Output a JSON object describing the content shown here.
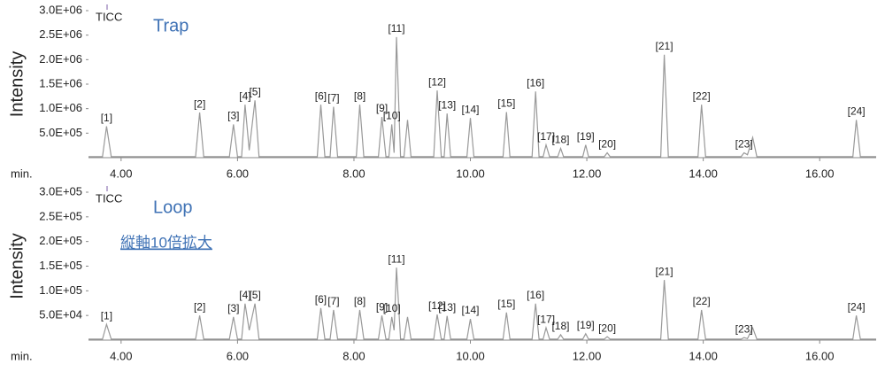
{
  "chart_data": [
    {
      "type": "line",
      "annotations": [
        "Trap"
      ],
      "y_label": "Intensity",
      "x_label": "min.",
      "xlim": [
        3.44,
        16.97
      ],
      "ylim": [
        0,
        3000000
      ],
      "xticks": [
        {
          "value": 4,
          "label": "4.00"
        },
        {
          "value": 6,
          "label": "6.00"
        },
        {
          "value": 8,
          "label": "8.00"
        },
        {
          "value": 10,
          "label": "10.00"
        },
        {
          "value": 12,
          "label": "12.00"
        },
        {
          "value": 14,
          "label": "14.00"
        },
        {
          "value": 16,
          "label": "16.00"
        }
      ],
      "yticks": [
        {
          "value": 500000,
          "label": "5.0E+05"
        },
        {
          "value": 1000000,
          "label": "1.0E+06"
        },
        {
          "value": 1500000,
          "label": "1.5E+06"
        },
        {
          "value": 2000000,
          "label": "2.0E+06"
        },
        {
          "value": 2500000,
          "label": "2.5E+06"
        },
        {
          "value": 3000000,
          "label": "3.0E+06"
        }
      ],
      "x": [
        3.44,
        3.68,
        3.75,
        3.83,
        5.28,
        5.35,
        5.42,
        5.86,
        5.93,
        6.0,
        6.07,
        6.13,
        6.2,
        6.3,
        6.37,
        7.37,
        7.43,
        7.5,
        7.59,
        7.65,
        7.72,
        8.04,
        8.1,
        8.17,
        8.42,
        8.48,
        8.55,
        8.6,
        8.65,
        8.69,
        8.73,
        8.8,
        8.86,
        8.92,
        8.98,
        9.37,
        9.43,
        9.5,
        9.55,
        9.6,
        9.66,
        9.94,
        10.0,
        10.06,
        10.56,
        10.62,
        10.68,
        11.06,
        11.12,
        11.18,
        11.25,
        11.3,
        11.36,
        11.5,
        11.55,
        11.6,
        11.93,
        11.98,
        12.03,
        12.3,
        12.35,
        12.4,
        13.27,
        13.33,
        13.4,
        13.91,
        13.97,
        14.04,
        14.65,
        14.7,
        14.76,
        14.85,
        14.92,
        16.57,
        16.63,
        16.7,
        16.97
      ],
      "series": [
        {
          "name": "TICC",
          "color": "#999999",
          "marker_color": "#7b5ea7",
          "values": [
            20000,
            20000,
            640000,
            20000,
            20000,
            920000,
            20000,
            20000,
            680000,
            20000,
            20000,
            1080000,
            150000,
            1170000,
            20000,
            20000,
            1080000,
            20000,
            20000,
            1040000,
            20000,
            20000,
            1080000,
            20000,
            20000,
            830000,
            20000,
            20000,
            680000,
            100000,
            2460000,
            20000,
            20000,
            770000,
            20000,
            20000,
            1370000,
            20000,
            20000,
            900000,
            20000,
            20000,
            810000,
            20000,
            20000,
            930000,
            20000,
            20000,
            1350000,
            20000,
            20000,
            260000,
            20000,
            20000,
            190000,
            20000,
            20000,
            260000,
            20000,
            20000,
            100000,
            20000,
            20000,
            2100000,
            20000,
            20000,
            1080000,
            20000,
            20000,
            100000,
            60000,
            410000,
            20000,
            20000,
            770000,
            20000,
            20000
          ],
          "point_labels": [
            null,
            null,
            "[1]",
            null,
            null,
            "[2]",
            null,
            null,
            "[3]",
            null,
            null,
            "[4]",
            null,
            "[5]",
            null,
            null,
            "[6]",
            null,
            null,
            "[7]",
            null,
            null,
            "[8]",
            null,
            null,
            "[9]",
            null,
            null,
            "[10]",
            null,
            "[11]",
            null,
            null,
            null,
            null,
            null,
            "[12]",
            null,
            null,
            "[13]",
            null,
            null,
            "[14]",
            null,
            null,
            "[15]",
            null,
            null,
            "[16]",
            null,
            null,
            "[17]",
            null,
            null,
            "[18]",
            null,
            null,
            "[19]",
            null,
            null,
            "[20]",
            null,
            null,
            "[21]",
            null,
            null,
            "[22]",
            null,
            null,
            "[23]",
            null,
            null,
            null,
            null,
            "[24]",
            null,
            null
          ]
        }
      ]
    },
    {
      "type": "line",
      "annotations": [
        "Loop",
        "縦軸10倍拡大"
      ],
      "y_label": "Intensity",
      "x_label": "min.",
      "xlim": [
        3.44,
        16.97
      ],
      "ylim": [
        0,
        300000
      ],
      "xticks": [
        {
          "value": 4,
          "label": "4.00"
        },
        {
          "value": 6,
          "label": "6.00"
        },
        {
          "value": 8,
          "label": "8.00"
        },
        {
          "value": 10,
          "label": "10.00"
        },
        {
          "value": 12,
          "label": "12.00"
        },
        {
          "value": 14,
          "label": "14.00"
        },
        {
          "value": 16,
          "label": "16.00"
        }
      ],
      "yticks": [
        {
          "value": 50000,
          "label": "5.0E+04"
        },
        {
          "value": 100000,
          "label": "1.0E+05"
        },
        {
          "value": 150000,
          "label": "1.5E+05"
        },
        {
          "value": 200000,
          "label": "2.0E+05"
        },
        {
          "value": 250000,
          "label": "2.5E+05"
        },
        {
          "value": 300000,
          "label": "3.0E+05"
        }
      ],
      "x": [
        3.44,
        3.68,
        3.75,
        3.83,
        5.28,
        5.35,
        5.42,
        5.86,
        5.93,
        6.0,
        6.07,
        6.13,
        6.2,
        6.3,
        6.37,
        7.37,
        7.43,
        7.5,
        7.59,
        7.65,
        7.72,
        8.04,
        8.1,
        8.17,
        8.42,
        8.48,
        8.55,
        8.6,
        8.65,
        8.69,
        8.73,
        8.8,
        8.86,
        8.92,
        8.98,
        9.37,
        9.43,
        9.5,
        9.55,
        9.6,
        9.66,
        9.94,
        10.0,
        10.06,
        10.56,
        10.62,
        10.68,
        11.06,
        11.12,
        11.18,
        11.25,
        11.3,
        11.36,
        11.5,
        11.55,
        11.6,
        11.93,
        11.98,
        12.03,
        12.3,
        12.35,
        12.4,
        13.27,
        13.33,
        13.4,
        13.91,
        13.97,
        14.04,
        14.65,
        14.7,
        14.76,
        14.85,
        14.92,
        16.57,
        16.63,
        16.7,
        16.97
      ],
      "series": [
        {
          "name": "TICC",
          "color": "#999999",
          "marker_color": "#7b5ea7",
          "values": [
            2000,
            2000,
            32000,
            2000,
            2000,
            50000,
            2000,
            2000,
            47000,
            2000,
            2000,
            74000,
            20000,
            74000,
            2000,
            2000,
            65000,
            2000,
            2000,
            61000,
            2000,
            2000,
            61000,
            2000,
            2000,
            50000,
            2000,
            2000,
            47000,
            20000,
            147000,
            2000,
            2000,
            47000,
            2000,
            2000,
            52000,
            2000,
            2000,
            49000,
            2000,
            2000,
            43000,
            2000,
            2000,
            56000,
            2000,
            2000,
            74000,
            2000,
            2000,
            25000,
            2000,
            2000,
            11000,
            2000,
            2000,
            13000,
            2000,
            2000,
            7000,
            2000,
            2000,
            122000,
            2000,
            2000,
            61000,
            2000,
            2000,
            5000,
            3000,
            25000,
            2000,
            2000,
            50000,
            2000,
            2000
          ],
          "point_labels": [
            null,
            null,
            "[1]",
            null,
            null,
            "[2]",
            null,
            null,
            "[3]",
            null,
            null,
            "[4]",
            null,
            "[5]",
            null,
            null,
            "[6]",
            null,
            null,
            "[7]",
            null,
            null,
            "[8]",
            null,
            null,
            "[9]",
            null,
            null,
            "[10]",
            null,
            "[11]",
            null,
            null,
            null,
            null,
            null,
            "[12]",
            null,
            null,
            "[13]",
            null,
            null,
            "[14]",
            null,
            null,
            "[15]",
            null,
            null,
            "[16]",
            null,
            null,
            "[17]",
            null,
            null,
            "[18]",
            null,
            null,
            "[19]",
            null,
            null,
            "[20]",
            null,
            null,
            "[21]",
            null,
            null,
            "[22]",
            null,
            null,
            "[23]",
            null,
            null,
            null,
            null,
            "[24]",
            null,
            null
          ]
        }
      ]
    }
  ]
}
